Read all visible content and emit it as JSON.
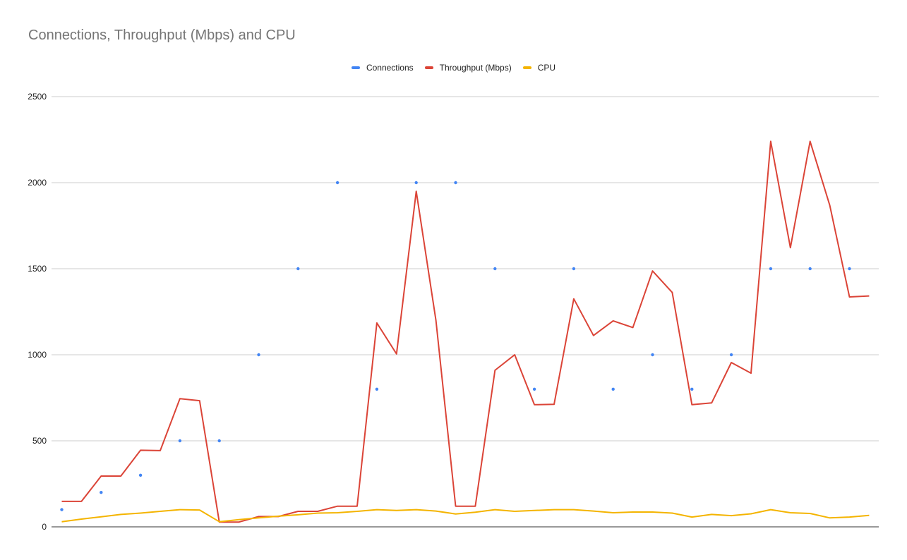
{
  "chart_data": {
    "type": "line",
    "title": "Connections, Throughput (Mbps) and CPU",
    "xlabel": "",
    "ylabel": "",
    "ylim": [
      0,
      2500
    ],
    "yticks": [
      "0",
      "500",
      "1000",
      "1500",
      "2000",
      "2500"
    ],
    "grid": true,
    "legend_position": "top",
    "x": [
      1,
      2,
      3,
      4,
      5,
      6,
      7,
      8,
      9,
      10,
      11,
      12,
      13,
      14,
      15,
      16,
      17,
      18,
      19,
      20,
      21,
      22,
      23,
      24,
      25,
      26,
      27,
      28,
      29,
      30,
      31,
      32,
      33,
      34,
      35,
      36,
      37,
      38,
      39,
      40,
      41,
      42
    ],
    "series": [
      {
        "name": "Connections",
        "style": "points",
        "color": "#4285f4",
        "values": [
          100,
          null,
          200,
          null,
          300,
          null,
          500,
          null,
          500,
          null,
          1000,
          null,
          1500,
          null,
          2000,
          null,
          800,
          null,
          2000,
          null,
          2000,
          null,
          1500,
          null,
          800,
          null,
          1500,
          null,
          800,
          null,
          1000,
          null,
          800,
          null,
          1000,
          null,
          1500,
          null,
          1500,
          null,
          1500,
          null
        ]
      },
      {
        "name": "Throughput (Mbps)",
        "style": "line",
        "color": "#db4437",
        "values": [
          148,
          148,
          295,
          295,
          445,
          443,
          745,
          733,
          28,
          28,
          60,
          60,
          90,
          90,
          120,
          120,
          1185,
          1005,
          1950,
          1200,
          120,
          120,
          910,
          1000,
          710,
          712,
          1325,
          1112,
          1197,
          1158,
          1487,
          1362,
          710,
          720,
          955,
          893,
          2240,
          1622,
          2240,
          1868,
          1336,
          1342
        ]
      },
      {
        "name": "CPU",
        "style": "line",
        "color": "#f4b400",
        "values": [
          30,
          45,
          58,
          72,
          80,
          90,
          100,
          98,
          30,
          42,
          52,
          62,
          70,
          80,
          82,
          90,
          100,
          95,
          100,
          92,
          75,
          85,
          100,
          90,
          95,
          100,
          100,
          92,
          82,
          86,
          86,
          80,
          57,
          72,
          65,
          76,
          100,
          82,
          78,
          52,
          57,
          67
        ]
      }
    ]
  }
}
